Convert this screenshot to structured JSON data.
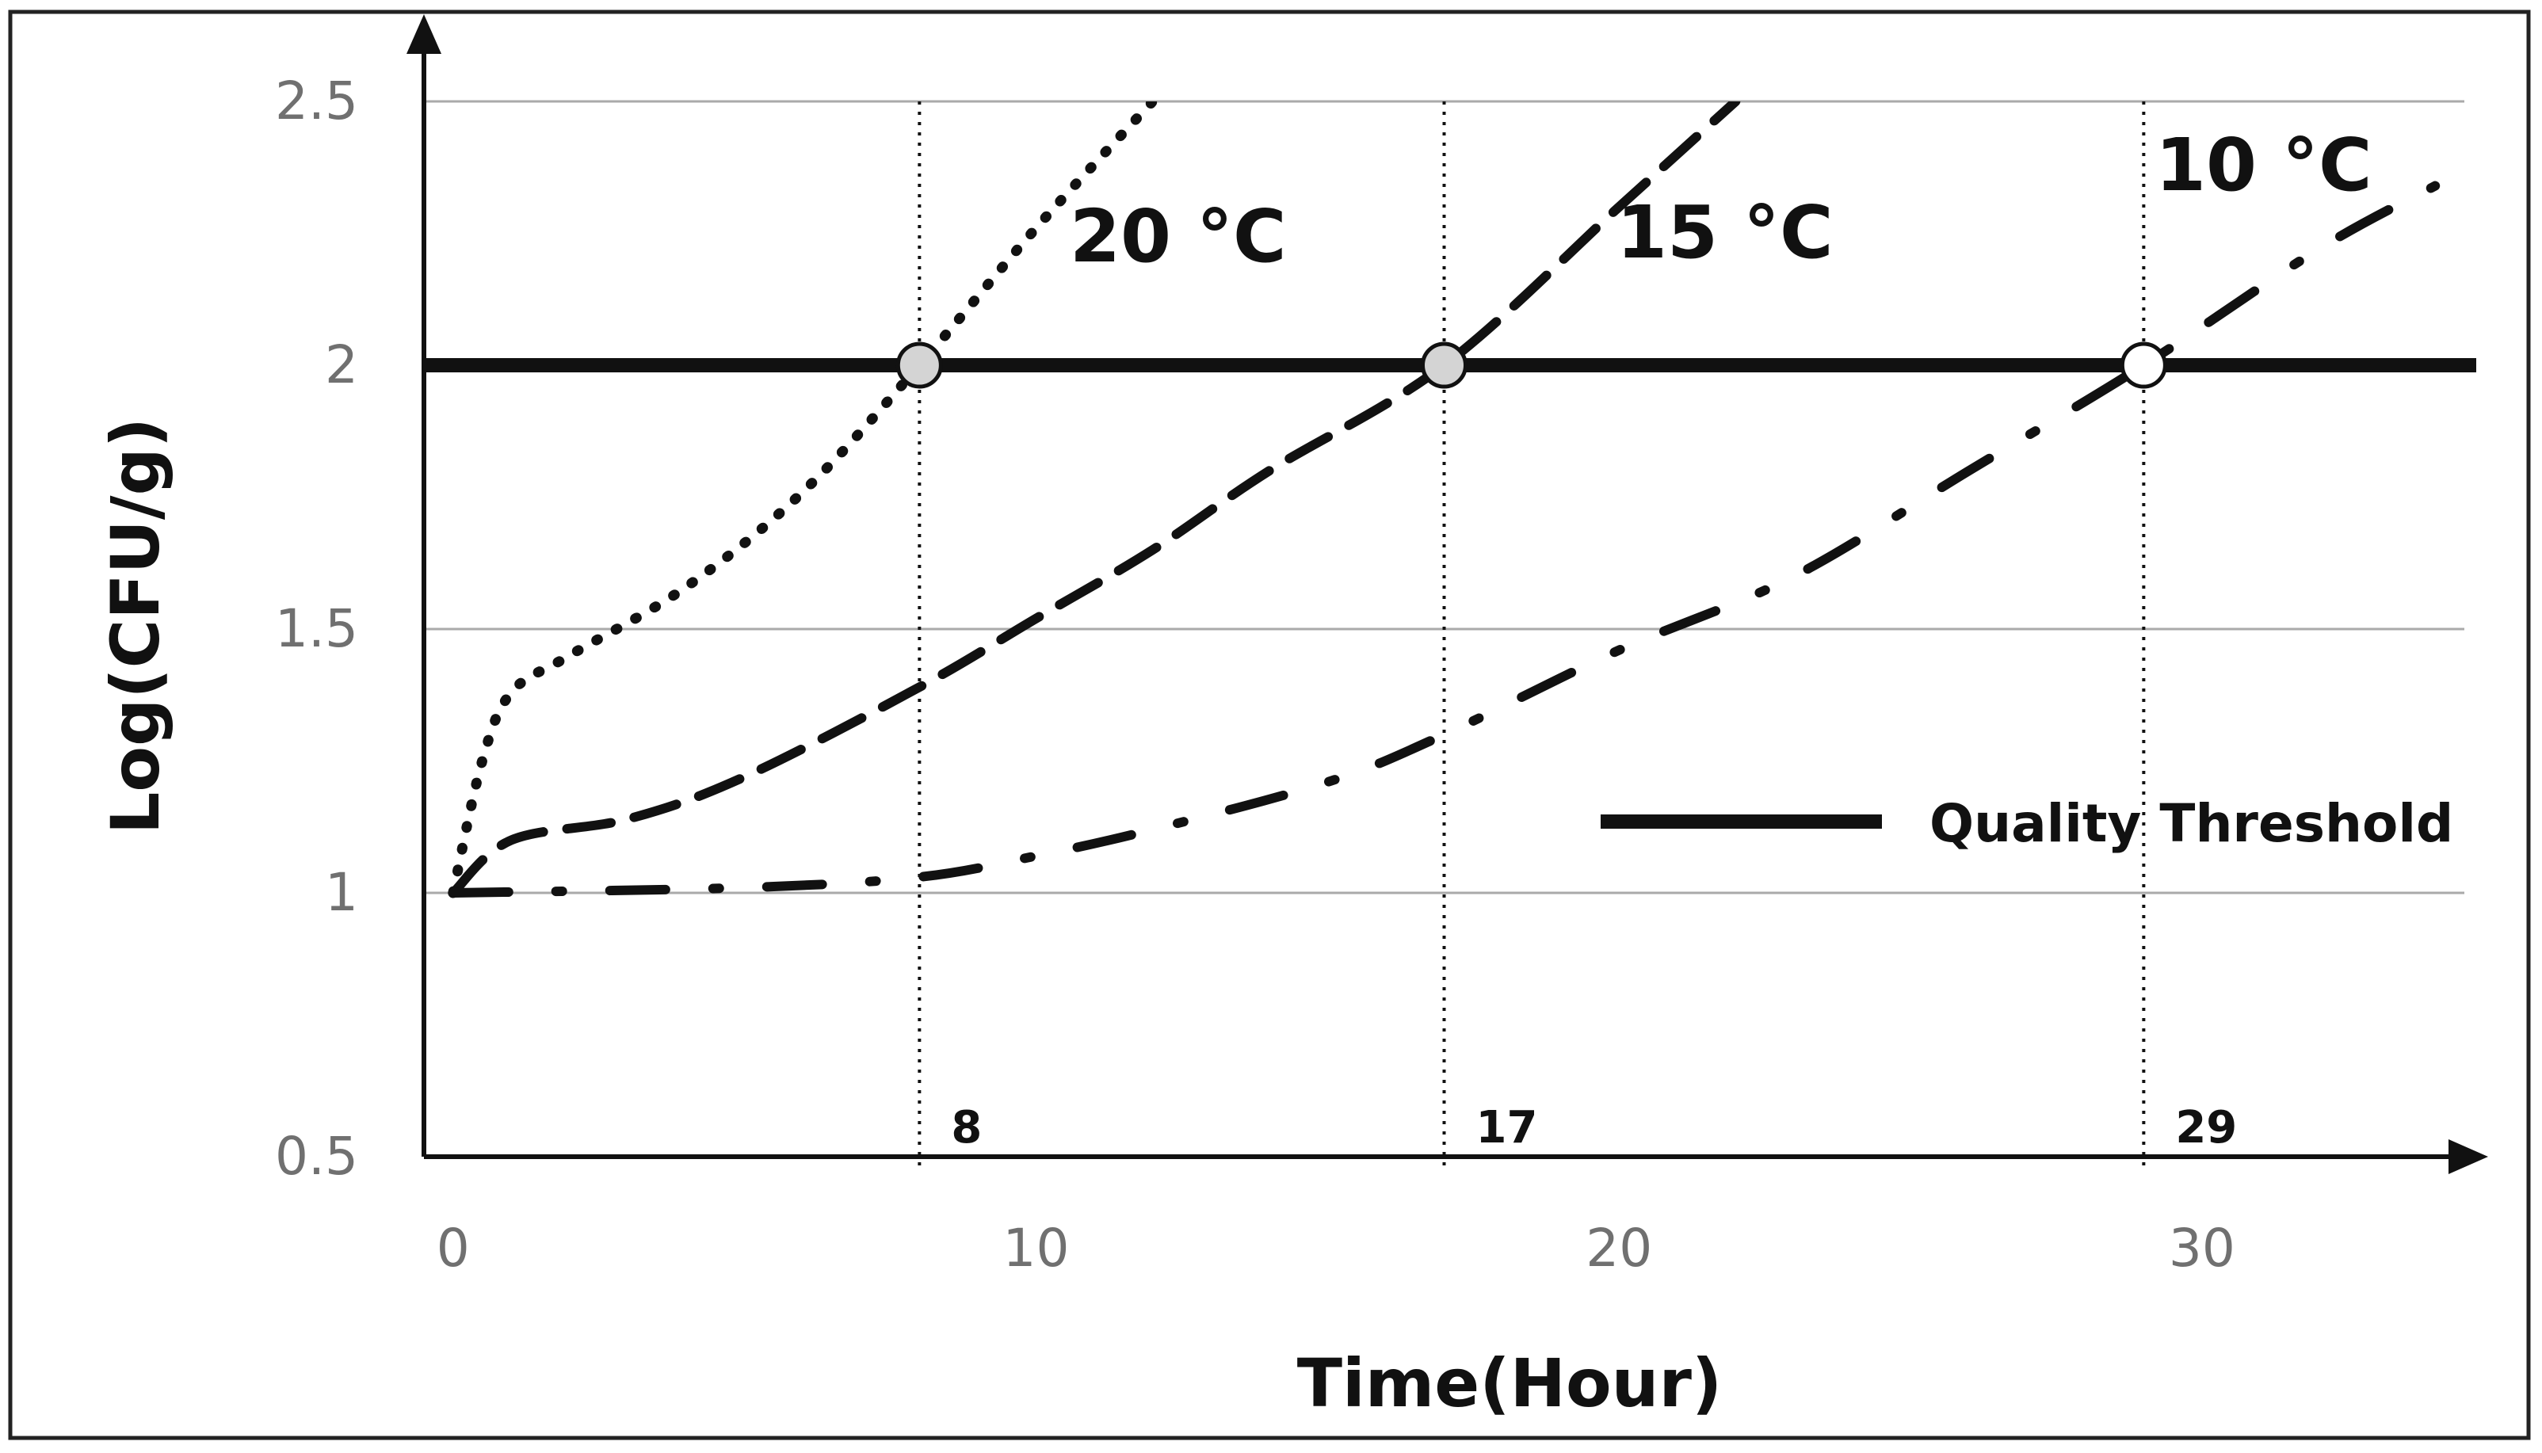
{
  "chart_data": {
    "type": "line",
    "title": "",
    "xlabel": "Time(Hour)",
    "ylabel": "Log(CFU/g)",
    "xlim": [
      -0.5,
      34.5
    ],
    "ylim": [
      0.5,
      2.5
    ],
    "x_ticks": [
      "0",
      "10",
      "20",
      "30"
    ],
    "y_ticks": [
      "0.5",
      "1",
      "1.5",
      "2",
      "2.5"
    ],
    "grid": true,
    "threshold": {
      "name": "Quality Threshold",
      "value": 2
    },
    "crossing_labels": [
      "8",
      "17",
      "29"
    ],
    "series": [
      {
        "name": "20 °C",
        "style": "dotted",
        "x": [
          0,
          0.5,
          1,
          2,
          4,
          6,
          8,
          10,
          12
        ],
        "y": [
          1.0,
          1.25,
          1.38,
          1.45,
          1.58,
          1.76,
          2.0,
          2.26,
          2.5
        ]
      },
      {
        "name": "15 °C",
        "style": "dashed",
        "x": [
          0,
          1,
          3,
          5,
          8,
          10,
          12,
          14,
          17,
          20,
          22
        ],
        "y": [
          1.0,
          1.1,
          1.14,
          1.22,
          1.39,
          1.52,
          1.65,
          1.8,
          2.0,
          2.3,
          2.5
        ]
      },
      {
        "name": "10 °C",
        "style": "dash-dot",
        "x": [
          0,
          5,
          8,
          10,
          12,
          15,
          17,
          20,
          23,
          26,
          29,
          32,
          34
        ],
        "y": [
          1.0,
          1.01,
          1.03,
          1.07,
          1.12,
          1.21,
          1.3,
          1.46,
          1.6,
          1.8,
          2.0,
          2.22,
          2.34
        ]
      }
    ]
  }
}
